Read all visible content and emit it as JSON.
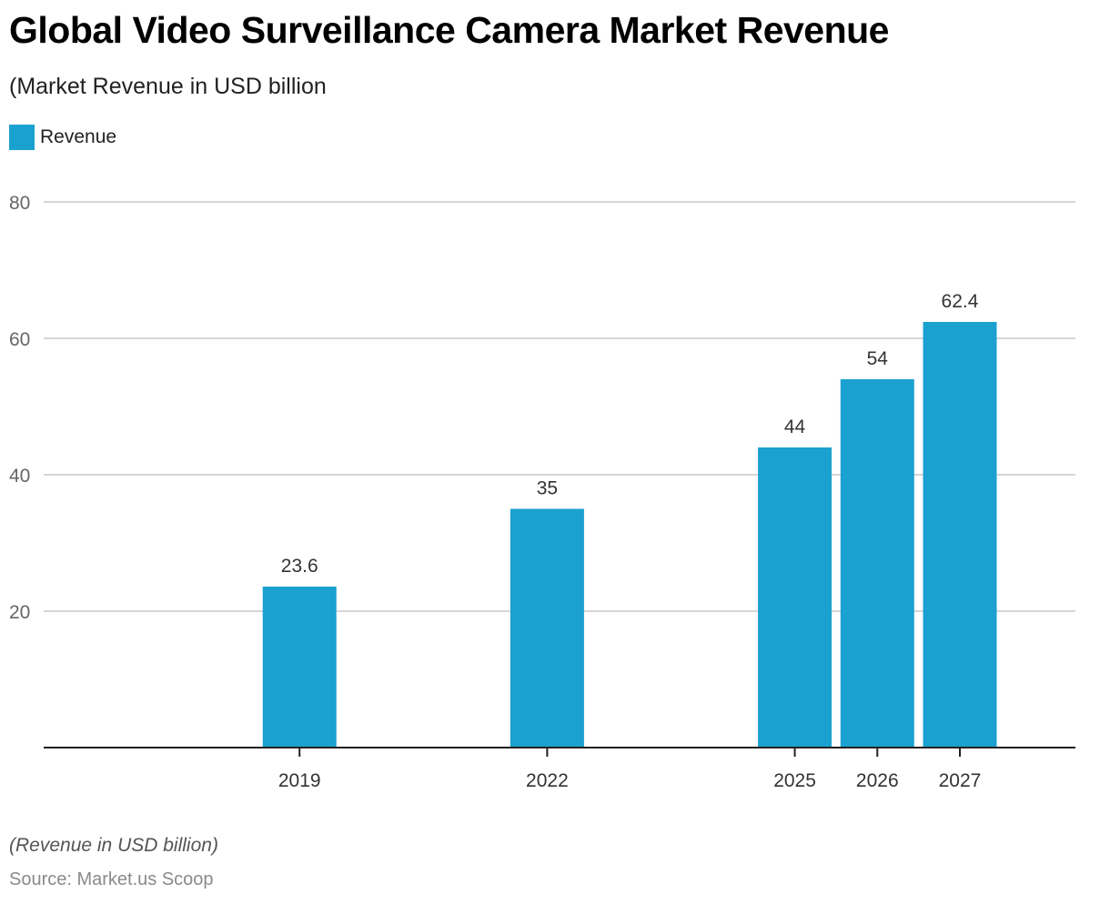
{
  "header": {
    "title": "Global Video Surveillance Camera Market Revenue",
    "subtitle": "(Market Revenue in USD billion"
  },
  "legend": [
    {
      "label": "Revenue",
      "color": "#1ba1cf"
    }
  ],
  "footer": {
    "note": "(Revenue in USD billion)",
    "source": "Source: Market.us Scoop"
  },
  "chart_data": {
    "type": "bar",
    "title": "Global Video Surveillance Camera Market Revenue",
    "subtitle": "(Market Revenue in USD billion",
    "xlabel": "",
    "ylabel": "",
    "x_scale": "time",
    "categories": [
      "2019",
      "2022",
      "2025",
      "2026",
      "2027"
    ],
    "x": [
      2019,
      2022,
      2025,
      2026,
      2027
    ],
    "xlim": [
      2015.9,
      2028.4
    ],
    "series": [
      {
        "name": "Revenue",
        "color": "#1ba1cf",
        "values": [
          23.6,
          35,
          44,
          54,
          62.4
        ]
      }
    ],
    "data_labels": [
      "23.6",
      "35",
      "44",
      "54",
      "62.4"
    ],
    "ylim": [
      0,
      80
    ],
    "yticks": [
      20,
      40,
      60,
      80
    ],
    "grid": true,
    "legend_position": "top-left"
  }
}
